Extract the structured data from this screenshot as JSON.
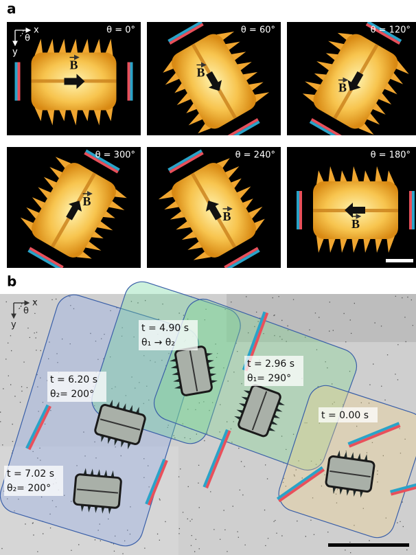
{
  "panel_a": {
    "label": "a",
    "axes": {
      "x": "x",
      "y": "y",
      "angle": "θ"
    },
    "tiles": [
      {
        "angle": "θ = 0°",
        "field": "B"
      },
      {
        "angle": "θ = 60°",
        "field": "B"
      },
      {
        "angle": "θ = 120°",
        "field": "B"
      },
      {
        "angle": "θ = 300°",
        "field": "B"
      },
      {
        "angle": "θ = 240°",
        "field": "B"
      },
      {
        "angle": "θ = 180°",
        "field": "B"
      }
    ]
  },
  "panel_b": {
    "label": "b",
    "axes": {
      "x": "x",
      "y": "y",
      "angle": "θ"
    },
    "frames": [
      {
        "time": "t = 4.90 s",
        "angle": "θ₁ → θ₂"
      },
      {
        "time": "t = 2.96 s",
        "angle": "θ₁= 290°"
      },
      {
        "time": "t = 6.20 s",
        "angle": "θ₂= 200°"
      },
      {
        "time": "t = 0.00 s"
      },
      {
        "time": "t = 7.02 s",
        "angle": "θ₂= 200°"
      }
    ]
  }
}
